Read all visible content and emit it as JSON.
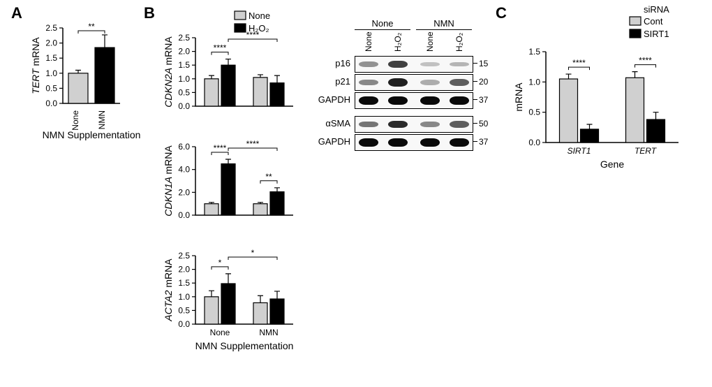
{
  "panels": {
    "A": {
      "label": "A",
      "chart": {
        "type": "bar",
        "ylabel_italic": "TERT ",
        "ylabel_rest": "mRNA",
        "categories": [
          "None",
          "NMN"
        ],
        "values": [
          1.0,
          1.85
        ],
        "errors": [
          0.1,
          0.42
        ],
        "bar_colors": [
          "#d0d0d0",
          "#000000"
        ],
        "ylim": [
          0,
          2.5
        ],
        "yticks": [
          0.0,
          0.5,
          1.0,
          1.5,
          2.0,
          2.5
        ],
        "sig": [
          {
            "from": 0,
            "to": 1,
            "text": "**"
          }
        ],
        "xlabel": "NMN Supplementation"
      }
    },
    "B": {
      "label": "B",
      "legend": {
        "title": null,
        "items": [
          {
            "label": "None",
            "color": "#d0d0d0"
          },
          {
            "label": "H₂O₂",
            "color": "#000000"
          }
        ]
      },
      "xlabel": "NMN Supplementation",
      "x_groups": [
        "None",
        "NMN"
      ],
      "charts": [
        {
          "ylabel_italic": "CDKN2A ",
          "ylabel_rest": "mRNA",
          "ylim": [
            0,
            2.5
          ],
          "yticks": [
            0.0,
            0.5,
            1.0,
            1.5,
            2.0,
            2.5
          ],
          "values": {
            "None": [
              1.0,
              1.5
            ],
            "NMN": [
              1.05,
              0.85
            ]
          },
          "errors": {
            "None": [
              0.12,
              0.22
            ],
            "NMN": [
              0.1,
              0.27
            ]
          },
          "sig": [
            {
              "group": "None",
              "from": 0,
              "to": 1,
              "text": "****"
            },
            {
              "top": true,
              "text": "****"
            }
          ]
        },
        {
          "ylabel_italic": "CDKN1A ",
          "ylabel_rest": "mRNA",
          "ylim": [
            0,
            6.0
          ],
          "yticks": [
            0.0,
            2.0,
            4.0,
            6.0
          ],
          "values": {
            "None": [
              1.0,
              4.5
            ],
            "NMN": [
              1.0,
              2.05
            ]
          },
          "errors": {
            "None": [
              0.12,
              0.4
            ],
            "NMN": [
              0.12,
              0.35
            ]
          },
          "sig": [
            {
              "group": "None",
              "from": 0,
              "to": 1,
              "text": "****"
            },
            {
              "group": "NMN",
              "from": 0,
              "to": 1,
              "text": "**"
            },
            {
              "top": true,
              "text": "****"
            }
          ]
        },
        {
          "ylabel_italic": "ACTA2 ",
          "ylabel_rest": "mRNA",
          "ylim": [
            0,
            2.5
          ],
          "yticks": [
            0.0,
            0.5,
            1.0,
            1.5,
            2.0,
            2.5
          ],
          "values": {
            "None": [
              1.0,
              1.48
            ],
            "NMN": [
              0.78,
              0.92
            ]
          },
          "errors": {
            "None": [
              0.22,
              0.36
            ],
            "NMN": [
              0.26,
              0.28
            ]
          },
          "sig": [
            {
              "group": "None",
              "from": 0,
              "to": 1,
              "text": "*"
            },
            {
              "top": true,
              "text": "*"
            }
          ]
        }
      ],
      "blot": {
        "top_groups": [
          "None",
          "NMN"
        ],
        "lanes": [
          "None",
          "H₂O₂",
          "None",
          "H₂O₂"
        ],
        "rows": [
          {
            "label": "p16",
            "mw": "15",
            "band_intensity": [
              0.3,
              0.7,
              0.08,
              0.14
            ]
          },
          {
            "label": "p21",
            "mw": "20",
            "band_intensity": [
              0.35,
              0.85,
              0.18,
              0.55
            ]
          },
          {
            "label": "GAPDH",
            "mw": "37",
            "band_intensity": [
              0.95,
              0.95,
              0.95,
              0.95
            ]
          },
          {
            "label": "αSMA",
            "mw": "50",
            "band_intensity": [
              0.45,
              0.8,
              0.35,
              0.55
            ]
          },
          {
            "label": "GAPDH",
            "mw": "37",
            "band_intensity": [
              0.95,
              0.95,
              0.95,
              0.95
            ]
          }
        ]
      }
    },
    "C": {
      "label": "C",
      "legend": {
        "title": "siRNA",
        "items": [
          {
            "label": "Cont",
            "color": "#d0d0d0"
          },
          {
            "label": "SIRT1",
            "color": "#000000"
          }
        ]
      },
      "chart": {
        "type": "grouped-bar",
        "ylabel": "mRNA",
        "x_groups": [
          "SIRT1",
          "TERT"
        ],
        "xlabel": "Gene",
        "ylim": [
          0,
          1.5
        ],
        "yticks": [
          0.0,
          0.5,
          1.0,
          1.5
        ],
        "values": {
          "SIRT1": [
            1.05,
            0.22
          ],
          "TERT": [
            1.07,
            0.38
          ]
        },
        "errors": {
          "SIRT1": [
            0.08,
            0.08
          ],
          "TERT": [
            0.1,
            0.12
          ]
        },
        "sig": [
          {
            "group": "SIRT1",
            "text": "****"
          },
          {
            "group": "TERT",
            "text": "****"
          }
        ]
      }
    }
  },
  "style": {
    "bar_colors": {
      "gray": "#d0d0d0",
      "black": "#000000"
    },
    "font_axis": 12,
    "font_label": 14,
    "font_panel": 22,
    "background": "#ffffff"
  }
}
